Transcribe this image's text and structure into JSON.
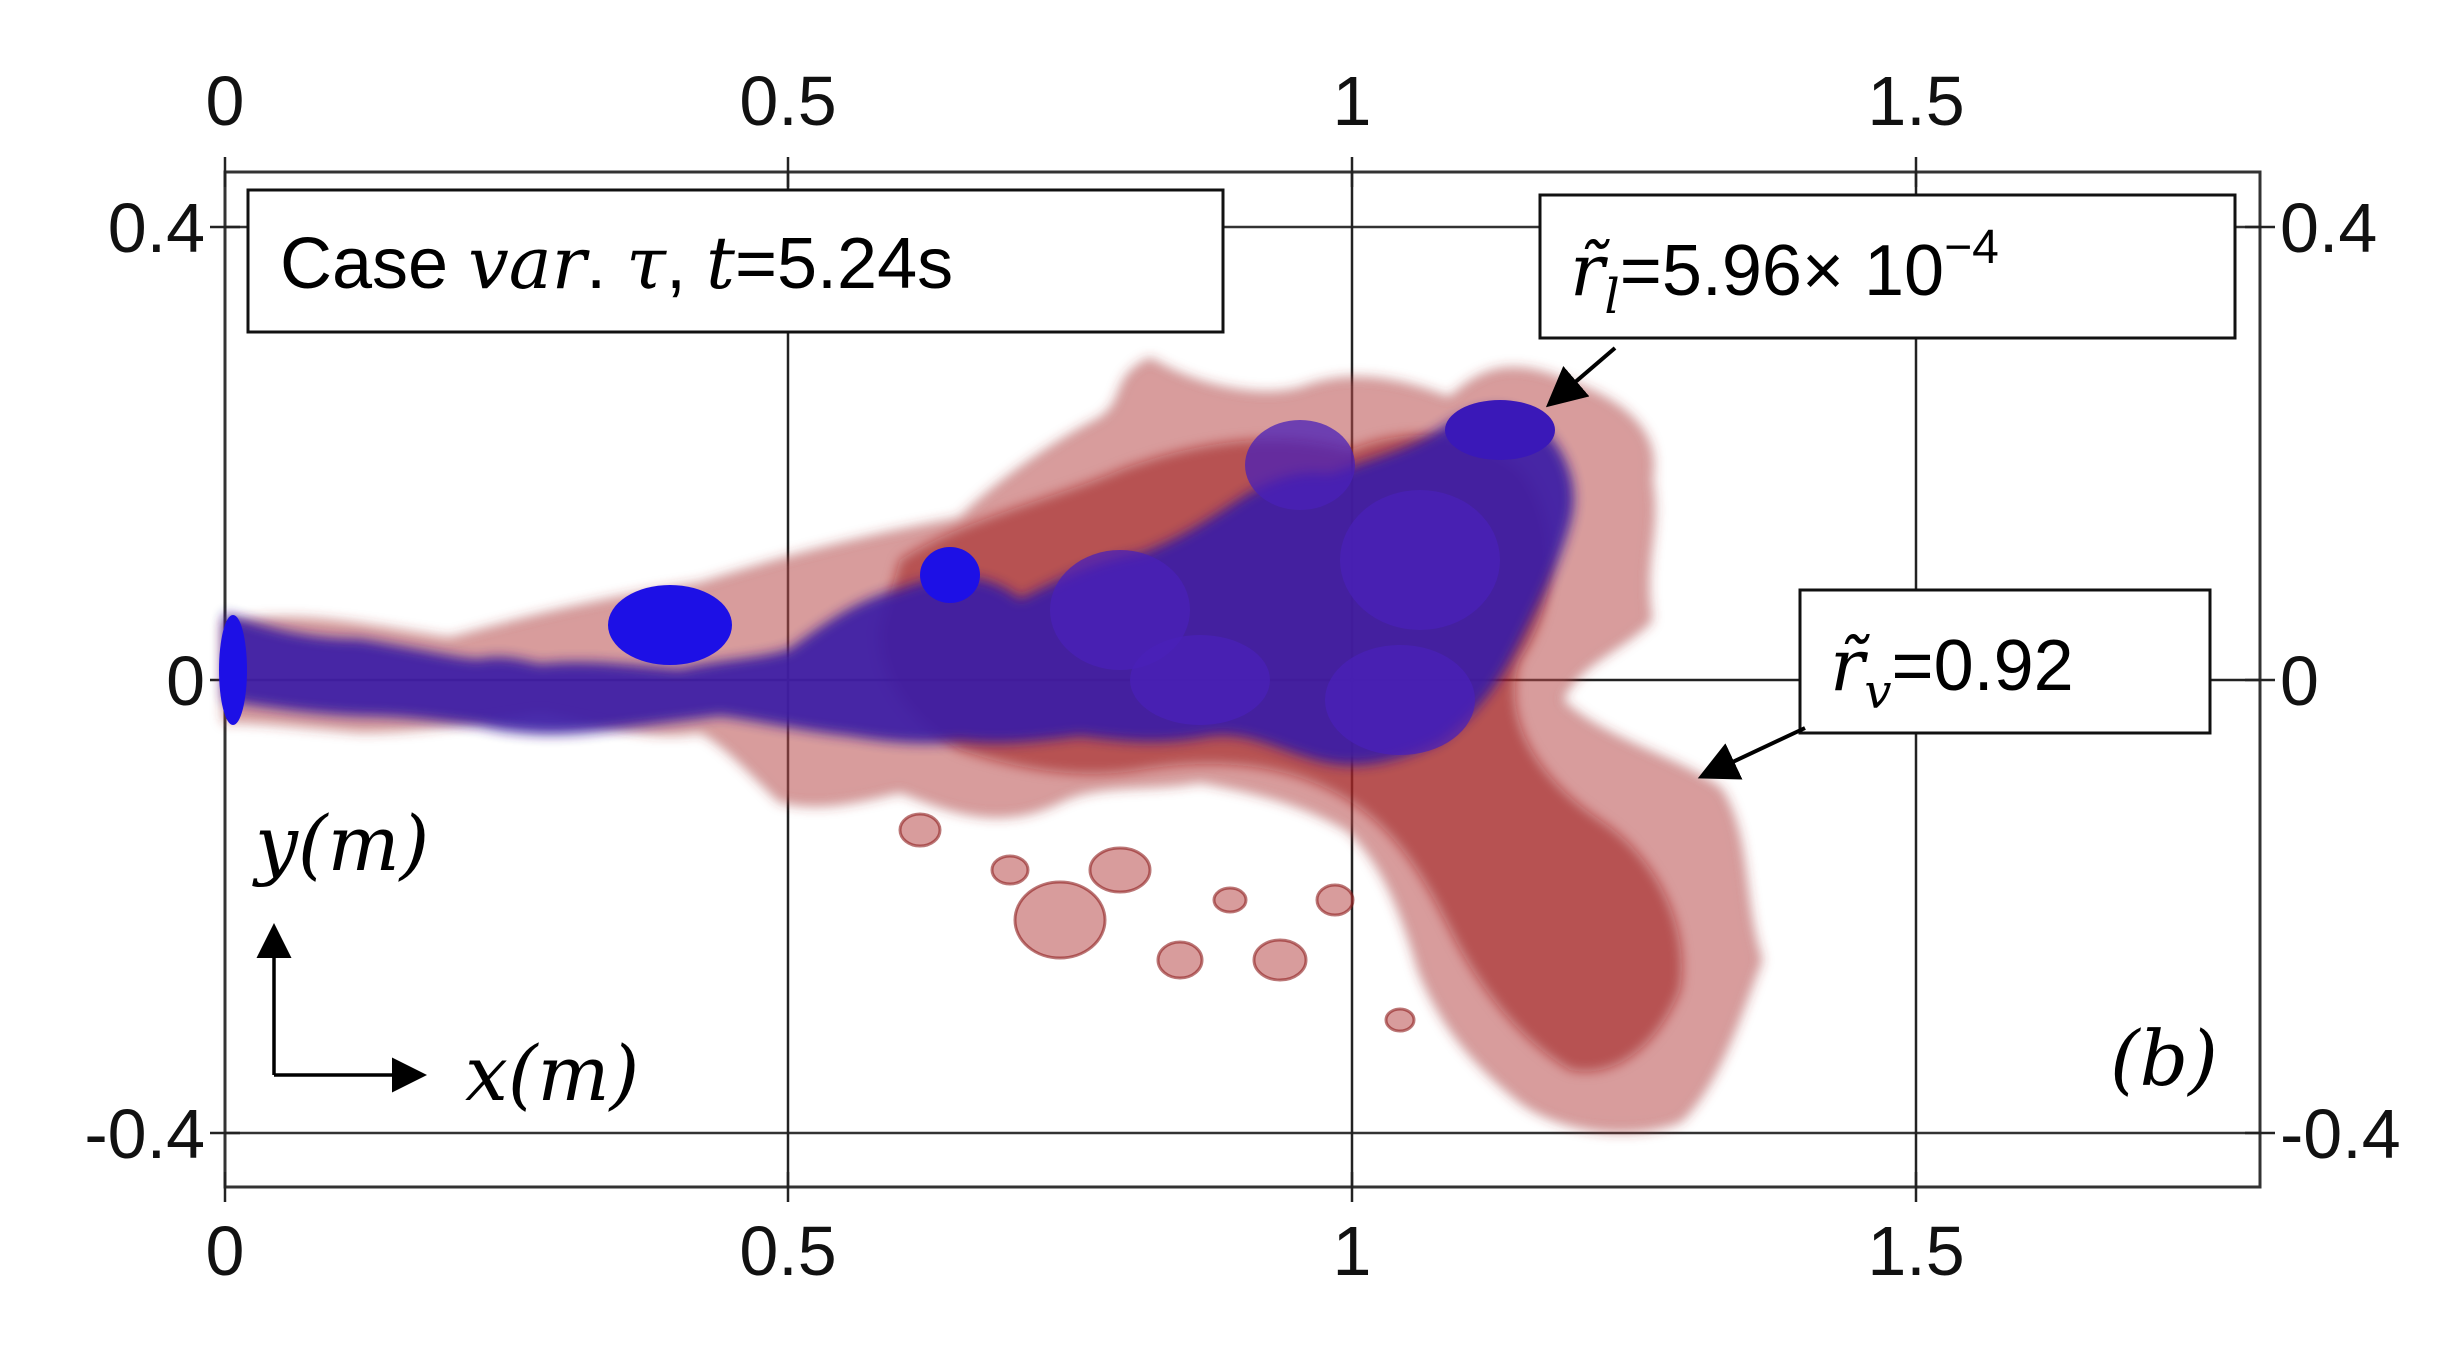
{
  "case_box": {
    "prefix": "Case ",
    "var": "var",
    "dot": ". ",
    "tau": "τ",
    "comma": ",  ",
    "t": "t",
    "value": "=5.24s"
  },
  "rl_box": {
    "symbol": "r̃",
    "sub": "l",
    "value": "=5.96× 10",
    "exp": "−4"
  },
  "rv_box": {
    "symbol": "r̃",
    "sub": "v",
    "value": "=0.92"
  },
  "panel_label": "(b)",
  "axes": {
    "x_ticks": [
      "0",
      "0.5",
      "1",
      "1.5"
    ],
    "y_ticks": [
      "0.4",
      "0",
      "-0.4"
    ],
    "x_label": "x(m)",
    "y_label": "y(m)"
  },
  "colors": {
    "liquid": "#2a1fd6",
    "vapor": "#b22222",
    "vapor_fill": "#c85a5a",
    "frame": "#222222"
  }
}
